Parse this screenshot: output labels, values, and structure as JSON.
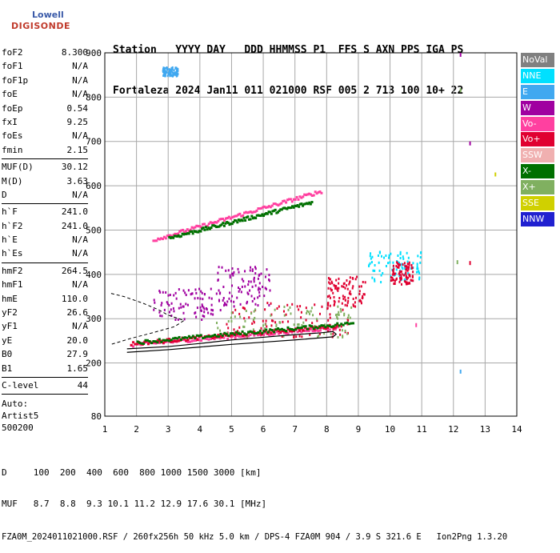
{
  "logo": {
    "line1": "Lowell",
    "line2": "DIGISONDE"
  },
  "header": {
    "row1": "Station   YYYY DAY   DDD HHMMSS P1  FFS S AXN PPS IGA PS",
    "row2": "Fortaleza 2024 Jan11 011 021000 RSF 005 2 713 100 10+ 22"
  },
  "params": {
    "group1": [
      {
        "name": "foF2",
        "value": "8.300"
      },
      {
        "name": "foF1",
        "value": "N/A"
      },
      {
        "name": "foF1p",
        "value": "N/A"
      },
      {
        "name": "foE",
        "value": "N/A"
      },
      {
        "name": "foEp",
        "value": "0.54"
      },
      {
        "name": "fxI",
        "value": "9.25"
      },
      {
        "name": "foEs",
        "value": "N/A"
      },
      {
        "name": "fmin",
        "value": "2.15"
      }
    ],
    "group2": [
      {
        "name": "MUF(D)",
        "value": "30.12"
      },
      {
        "name": "M(D)",
        "value": "3.63"
      },
      {
        "name": "D",
        "value": "N/A"
      }
    ],
    "group3": [
      {
        "name": "h`F",
        "value": "241.0"
      },
      {
        "name": "h`F2",
        "value": "241.0"
      },
      {
        "name": "h`E",
        "value": "N/A"
      },
      {
        "name": "h`Es",
        "value": "N/A"
      }
    ],
    "group4": [
      {
        "name": "hmF2",
        "value": "264.5"
      },
      {
        "name": "hmF1",
        "value": "N/A"
      },
      {
        "name": "hmE",
        "value": "110.0"
      },
      {
        "name": "yF2",
        "value": "26.6"
      },
      {
        "name": "yF1",
        "value": "N/A"
      },
      {
        "name": "yE",
        "value": "20.0"
      },
      {
        "name": "B0",
        "value": "27.9"
      },
      {
        "name": "B1",
        "value": "1.65"
      }
    ],
    "clevel": {
      "name": "C-level",
      "value": "44"
    },
    "auto": {
      "l1": "Auto:",
      "l2": "Artist5",
      "l3": "500200"
    }
  },
  "legend": [
    {
      "label": "NoVal",
      "color": "#808080"
    },
    {
      "label": "NNE",
      "color": "#00e0ff"
    },
    {
      "label": "E",
      "color": "#40a8f0"
    },
    {
      "label": "W",
      "color": "#a000a0"
    },
    {
      "label": "Vo-",
      "color": "#ff40a0"
    },
    {
      "label": "Vo+",
      "color": "#e00030"
    },
    {
      "label": "SSW",
      "color": "#f0b0b0"
    },
    {
      "label": "X-",
      "color": "#007000"
    },
    {
      "label": "X+",
      "color": "#80b060"
    },
    {
      "label": "SSE",
      "color": "#d0d000"
    },
    {
      "label": "NNW",
      "color": "#2020d0"
    }
  ],
  "footer": {
    "d_row": "D     100  200  400  600  800 1000 1500 3000 [km]",
    "muf_row": "MUF   8.7  8.8  9.3 10.1 11.2 12.9 17.6 30.1 [MHz]",
    "info": "FZA0M_2024011021000.RSF / 260fx256h 50 kHz 5.0 km / DPS-4 FZA0M 904 / 3.9 S 321.6 E   Ion2Png 1.3.20"
  },
  "chart_data": {
    "type": "scatter",
    "xlim": [
      1,
      14
    ],
    "ylim": [
      80,
      900
    ],
    "x_ticks": [
      1,
      2,
      3,
      4,
      5,
      6,
      7,
      8,
      9,
      10,
      11,
      12,
      13,
      14
    ],
    "y_ticks": [
      80,
      200,
      300,
      400,
      500,
      600,
      700,
      800,
      900
    ],
    "grid": true,
    "profile_solid": [
      [
        1.7,
        232
      ],
      [
        3,
        237
      ],
      [
        4,
        244
      ],
      [
        5,
        252
      ],
      [
        6,
        258
      ],
      [
        7,
        264
      ],
      [
        7.8,
        268
      ],
      [
        8.2,
        271
      ],
      [
        8.3,
        265
      ],
      [
        8.2,
        259
      ],
      [
        7,
        252
      ],
      [
        6,
        247
      ],
      [
        5,
        242
      ],
      [
        4,
        236
      ],
      [
        3,
        230
      ],
      [
        1.7,
        224
      ]
    ],
    "profile_dashed": [
      [
        1.2,
        357
      ],
      [
        1.6,
        350
      ],
      [
        2.2,
        335
      ],
      [
        2.7,
        320
      ],
      [
        3.0,
        308
      ],
      [
        3.5,
        296
      ],
      [
        3.2,
        282
      ],
      [
        2.5,
        268
      ],
      [
        1.8,
        255
      ],
      [
        1.2,
        242
      ]
    ],
    "traces": [
      {
        "color": "#ff40a0",
        "x0": 1.8,
        "x1": 8.3,
        "y0": 243,
        "y1": 282
      },
      {
        "color": "#e00030",
        "x0": 1.8,
        "x1": 8.3,
        "y0": 246,
        "y1": 286
      },
      {
        "color": "#007000",
        "x0": 2.0,
        "x1": 8.8,
        "y0": 249,
        "y1": 292
      },
      {
        "color": "#ff40a0",
        "x0": 2.5,
        "x1": 7.8,
        "y0": 480,
        "y1": 590
      },
      {
        "color": "#007000",
        "x0": 3.0,
        "x1": 7.5,
        "y0": 485,
        "y1": 565
      }
    ],
    "clusters": [
      {
        "color": "#a000a0",
        "x0": 2.5,
        "x1": 4.8,
        "y0": 300,
        "y1": 370
      },
      {
        "color": "#a000a0",
        "x0": 4.5,
        "x1": 6.2,
        "y0": 330,
        "y1": 420
      },
      {
        "color": "#e00030",
        "x0": 4.8,
        "x1": 8.8,
        "y0": 260,
        "y1": 340
      },
      {
        "color": "#80b060",
        "x0": 4.5,
        "x1": 8.8,
        "y0": 260,
        "y1": 330
      },
      {
        "color": "#e00030",
        "x0": 8.0,
        "x1": 9.2,
        "y0": 330,
        "y1": 400
      },
      {
        "color": "#00e0ff",
        "x0": 9.3,
        "x1": 11.0,
        "y0": 385,
        "y1": 455
      },
      {
        "color": "#40a8f0",
        "x0": 2.8,
        "x1": 3.3,
        "y0": 850,
        "y1": 870
      },
      {
        "color": "#e00030",
        "x0": 10.0,
        "x1": 10.7,
        "y0": 380,
        "y1": 430
      }
    ],
    "points": [
      {
        "color": "#a000a0",
        "x": 12.2,
        "y": 900
      },
      {
        "color": "#80b060",
        "x": 12.2,
        "y": 820
      },
      {
        "color": "#a000a0",
        "x": 12.5,
        "y": 700
      },
      {
        "color": "#d0d000",
        "x": 13.3,
        "y": 630
      },
      {
        "color": "#ff40a0",
        "x": 10.8,
        "y": 290
      },
      {
        "color": "#40a8f0",
        "x": 12.2,
        "y": 185
      },
      {
        "color": "#80b060",
        "x": 12.1,
        "y": 432
      },
      {
        "color": "#e00030",
        "x": 12.5,
        "y": 430
      }
    ]
  }
}
